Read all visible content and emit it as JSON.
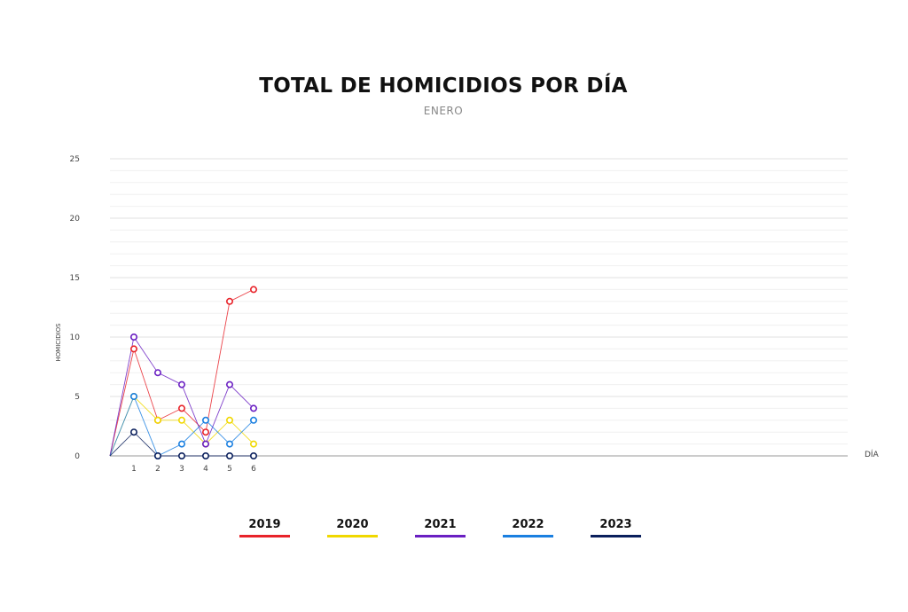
{
  "chart_data": {
    "type": "line",
    "title": "TOTAL DE HOMICIDIOS POR DÍA",
    "subtitle": "ENERO",
    "ylabel": "HOMICIDIOS",
    "xlabel": "DÍA",
    "ylim": [
      0,
      25
    ],
    "xlim": [
      0,
      31
    ],
    "y_ticks": [
      0,
      5,
      10,
      15,
      20,
      25
    ],
    "x_ticks": [
      1,
      2,
      3,
      4,
      5,
      6
    ],
    "grid": true,
    "legend_position": "bottom",
    "series": [
      {
        "name": "2019",
        "color": "#e8232a",
        "x": [
          0,
          1,
          2,
          3,
          4,
          5,
          6
        ],
        "values": [
          0,
          9,
          3,
          4,
          2,
          13,
          14
        ]
      },
      {
        "name": "2020",
        "color": "#f0d800",
        "x": [
          0,
          1,
          2,
          3,
          4,
          5,
          6
        ],
        "values": [
          0,
          5,
          3,
          3,
          1,
          3,
          1
        ]
      },
      {
        "name": "2021",
        "color": "#6a1fc2",
        "x": [
          0,
          1,
          2,
          3,
          4,
          5,
          6
        ],
        "values": [
          0,
          10,
          7,
          6,
          1,
          6,
          4
        ]
      },
      {
        "name": "2022",
        "color": "#1a7fe0",
        "x": [
          0,
          1,
          2,
          3,
          4,
          5,
          6
        ],
        "values": [
          0,
          5,
          0,
          1,
          3,
          1,
          3
        ]
      },
      {
        "name": "2023",
        "color": "#0a1f5c",
        "x": [
          0,
          1,
          2,
          3,
          4,
          5,
          6
        ],
        "values": [
          0,
          2,
          0,
          0,
          0,
          0,
          0
        ]
      }
    ]
  }
}
